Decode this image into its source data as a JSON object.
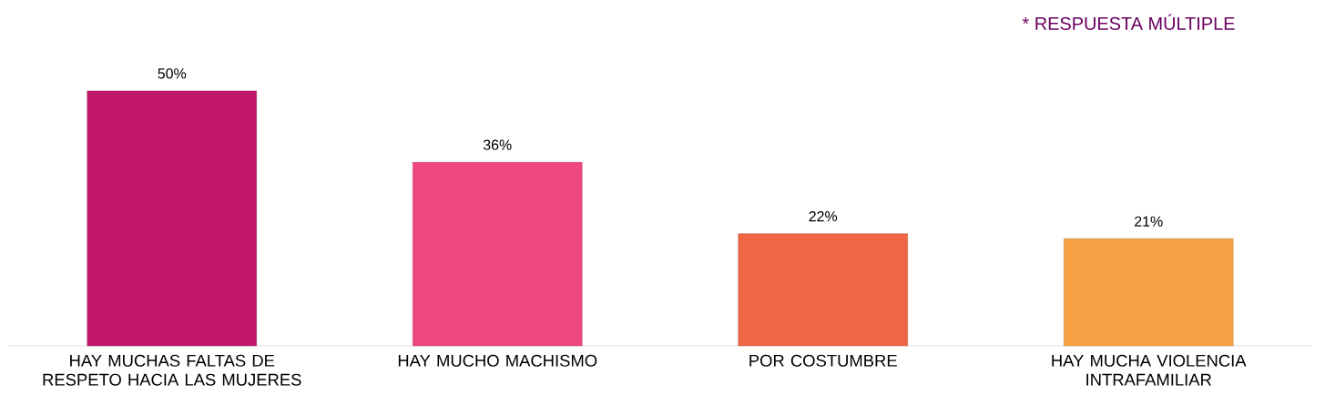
{
  "chart_data": {
    "type": "bar",
    "categories": [
      "HAY MUCHAS FALTAS DE RESPETO HACIA LAS MUJERES",
      "HAY MUCHO MACHISMO",
      "POR COSTUMBRE",
      "HAY MUCHA VIOLENCIA INTRAFAMILIAR"
    ],
    "values": [
      50,
      36,
      22,
      21
    ],
    "value_labels": [
      "50%",
      "36%",
      "22%",
      "21%"
    ],
    "colors": [
      "#c0176c",
      "#ee4680",
      "#ef6646",
      "#f6a244"
    ],
    "annotations": [
      "* RESPUESTA MÚLTIPLE"
    ]
  }
}
